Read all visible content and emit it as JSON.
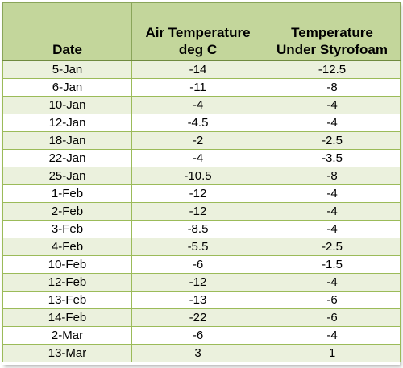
{
  "table": {
    "headers": [
      "Date",
      [
        "Air Temperature",
        "deg C"
      ],
      [
        "Temperature",
        "Under Styrofoam"
      ]
    ],
    "rows": [
      [
        "5-Jan",
        "-14",
        "-12.5"
      ],
      [
        "6-Jan",
        "-11",
        "-8"
      ],
      [
        "10-Jan",
        "-4",
        "-4"
      ],
      [
        "12-Jan",
        "-4.5",
        "-4"
      ],
      [
        "18-Jan",
        "-2",
        "-2.5"
      ],
      [
        "22-Jan",
        "-4",
        "-3.5"
      ],
      [
        "25-Jan",
        "-10.5",
        "-8"
      ],
      [
        "1-Feb",
        "-12",
        "-4"
      ],
      [
        "2-Feb",
        "-12",
        "-4"
      ],
      [
        "3-Feb",
        "-8.5",
        "-4"
      ],
      [
        "4-Feb",
        "-5.5",
        "-2.5"
      ],
      [
        "10-Feb",
        "-6",
        "-1.5"
      ],
      [
        "12-Feb",
        "-12",
        "-4"
      ],
      [
        "13-Feb",
        "-13",
        "-6"
      ],
      [
        "14-Feb",
        "-22",
        "-6"
      ],
      [
        "2-Mar",
        "-6",
        "-4"
      ],
      [
        "13-Mar",
        "3",
        "1"
      ]
    ]
  },
  "colors": {
    "header_bg": "#c3d69b",
    "band_bg": "#ebf1dd",
    "row_bg": "#ffffff",
    "border": "#9bbb59"
  }
}
